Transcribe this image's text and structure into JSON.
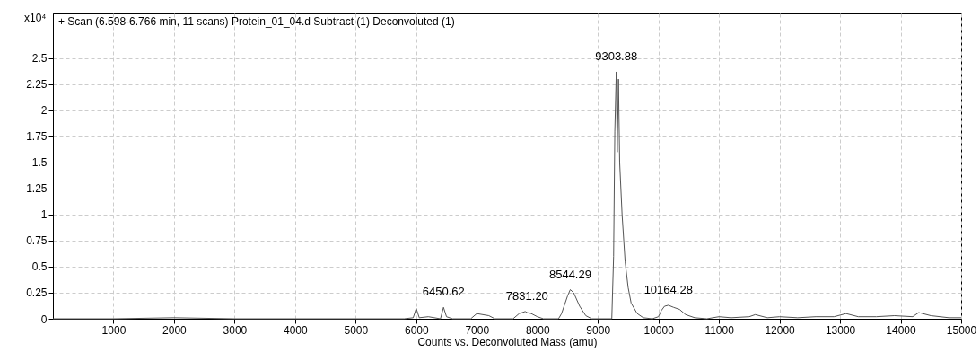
{
  "chart_data": {
    "type": "line",
    "title": "+ Scan (6.598-6.766 min, 11 scans) Protein_01_04.d  Subtract (1) Deconvoluted (1)",
    "xlabel": "Counts vs. Deconvoluted Mass (amu)",
    "ylabel": "x10⁴",
    "x": [
      0,
      1000,
      2000,
      3000,
      4000,
      5000,
      5800,
      5950,
      6000,
      6050,
      6200,
      6400,
      6450.62,
      6500,
      6600,
      6900,
      7000,
      7100,
      7200,
      7300,
      7600,
      7700,
      7800,
      7831.2,
      7900,
      8000,
      8100,
      8350,
      8400,
      8500,
      8544.29,
      8600,
      8700,
      8800,
      8900,
      9230,
      9260,
      9280,
      9303.88,
      9320,
      9340,
      9360,
      9400,
      9450,
      9500,
      9550,
      9650,
      9750,
      9900,
      10000,
      10050,
      10100,
      10164.28,
      10250,
      10350,
      10450,
      10600,
      10800,
      11000,
      11200,
      11500,
      11600,
      11800,
      12000,
      12300,
      12600,
      12900,
      13100,
      13300,
      13600,
      13900,
      14200,
      14300,
      14500,
      14800,
      15000
    ],
    "series": [
      {
        "color": "#555555",
        "values": [
          0,
          0,
          0.01,
          0,
          0,
          0,
          0,
          0.01,
          0.1,
          0.01,
          0.02,
          0,
          0.11,
          0.02,
          0,
          0,
          0.05,
          0.04,
          0.03,
          0,
          0,
          0.05,
          0.07,
          0.06,
          0.05,
          0.02,
          0,
          0,
          0.05,
          0.22,
          0.28,
          0.25,
          0.12,
          0.03,
          0,
          0,
          0.6,
          1.8,
          2.37,
          1.6,
          2.3,
          1.5,
          1.0,
          0.55,
          0.3,
          0.15,
          0.05,
          0.01,
          0,
          0.02,
          0.08,
          0.12,
          0.13,
          0.11,
          0.09,
          0.04,
          0.01,
          0,
          0.02,
          0.01,
          0.02,
          0.04,
          0.01,
          0.02,
          0.01,
          0.02,
          0.02,
          0.05,
          0.02,
          0.02,
          0.03,
          0.02,
          0.06,
          0.03,
          0.01,
          0.01
        ]
      }
    ],
    "xlim": [
      0,
      15000
    ],
    "xticks": [
      1000,
      2000,
      3000,
      4000,
      5000,
      6000,
      7000,
      8000,
      9000,
      10000,
      11000,
      12000,
      13000,
      14000,
      15000
    ],
    "ylim": [
      0,
      2.93
    ],
    "yticks": [
      0,
      0.25,
      0.5,
      0.75,
      1,
      1.25,
      1.5,
      1.75,
      2,
      2.25,
      2.5
    ],
    "grid": true,
    "marker": "none",
    "line_style": "solid",
    "annotations": [
      {
        "text": "6450.62",
        "x": 6450.62,
        "y": 0.11
      },
      {
        "text": "7831.20",
        "x": 7831.2,
        "y": 0.07
      },
      {
        "text": "8544.29",
        "x": 8544.29,
        "y": 0.28
      },
      {
        "text": "9303.88",
        "x": 9303.88,
        "y": 2.37
      },
      {
        "text": "10164.28",
        "x": 10164.28,
        "y": 0.13
      }
    ]
  }
}
